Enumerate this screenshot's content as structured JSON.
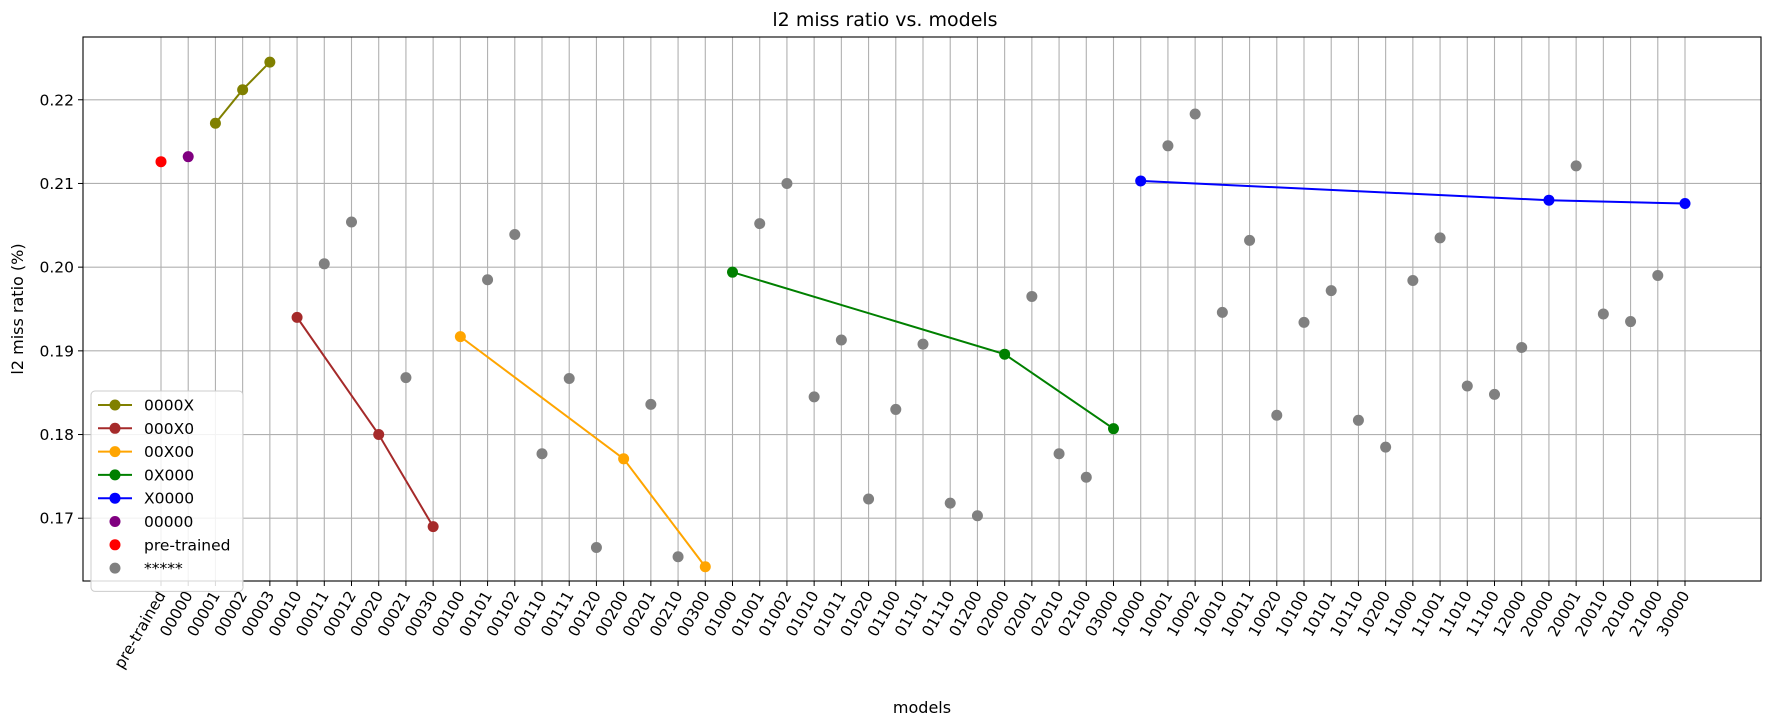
{
  "chart_data": {
    "type": "scatter",
    "title": "l2 miss ratio vs. models",
    "xlabel": "models",
    "ylabel": "l2 miss ratio (%)",
    "ylim": [
      0.1625,
      0.2275
    ],
    "yticks": [
      0.17,
      0.18,
      0.19,
      0.2,
      0.21,
      0.22
    ],
    "grid": true,
    "legend_position": "lower-left",
    "categories": [
      "pre-trained",
      "00000",
      "00001",
      "00002",
      "00003",
      "00010",
      "00011",
      "00012",
      "00020",
      "00021",
      "00030",
      "00100",
      "00101",
      "00102",
      "00110",
      "00111",
      "00120",
      "00200",
      "00201",
      "00210",
      "00300",
      "01000",
      "01001",
      "01002",
      "01010",
      "01011",
      "01020",
      "01100",
      "01101",
      "01110",
      "01200",
      "02000",
      "02001",
      "02010",
      "02100",
      "03000",
      "10000",
      "10001",
      "10002",
      "10010",
      "10011",
      "10020",
      "10100",
      "10101",
      "10110",
      "10200",
      "11000",
      "11001",
      "11010",
      "11100",
      "12000",
      "20000",
      "20001",
      "20010",
      "20100",
      "21000",
      "30000"
    ],
    "series": [
      {
        "name": "0000X",
        "style": "line-marker",
        "color": "#808000",
        "x": [
          "00001",
          "00002",
          "00003"
        ],
        "values": [
          0.2172,
          0.2212,
          0.2245
        ]
      },
      {
        "name": "000X0",
        "style": "line-marker",
        "color": "#a52a2a",
        "x": [
          "00010",
          "00020",
          "00030"
        ],
        "values": [
          0.194,
          0.18,
          0.169
        ]
      },
      {
        "name": "00X00",
        "style": "line-marker",
        "color": "#ffa500",
        "x": [
          "00100",
          "00200",
          "00300"
        ],
        "values": [
          0.1917,
          0.1771,
          0.1642
        ]
      },
      {
        "name": "0X000",
        "style": "line-marker",
        "color": "#008000",
        "x": [
          "01000",
          "02000",
          "03000"
        ],
        "values": [
          0.1994,
          0.1896,
          0.1807
        ]
      },
      {
        "name": "X0000",
        "style": "line-marker",
        "color": "#0000ff",
        "x": [
          "10000",
          "20000",
          "30000"
        ],
        "values": [
          0.2103,
          0.208,
          0.2076
        ]
      },
      {
        "name": "00000",
        "style": "marker",
        "color": "#800080",
        "x": [
          "00000"
        ],
        "values": [
          0.2132
        ]
      },
      {
        "name": "pre-trained",
        "style": "marker",
        "color": "#ff0000",
        "x": [
          "pre-trained"
        ],
        "values": [
          0.2126
        ]
      },
      {
        "name": "*****",
        "style": "marker",
        "color": "#808080",
        "x": [
          "00011",
          "00012",
          "00021",
          "00101",
          "00102",
          "00110",
          "00111",
          "00120",
          "00201",
          "00210",
          "01001",
          "01002",
          "01010",
          "01011",
          "01020",
          "01100",
          "01101",
          "01110",
          "01200",
          "02001",
          "02010",
          "02100",
          "10001",
          "10002",
          "10010",
          "10011",
          "10020",
          "10100",
          "10101",
          "10110",
          "10200",
          "11000",
          "11001",
          "11010",
          "11100",
          "12000",
          "20001",
          "20010",
          "20100",
          "21000"
        ],
        "values": [
          0.2004,
          0.2054,
          0.1868,
          0.1985,
          0.2039,
          0.1777,
          0.1867,
          0.1665,
          0.1836,
          0.1654,
          0.2052,
          0.21,
          0.1845,
          0.1913,
          0.1723,
          0.183,
          0.1908,
          0.1718,
          0.1703,
          0.1965,
          0.1777,
          0.1749,
          0.2145,
          0.2183,
          0.1946,
          0.2032,
          0.1823,
          0.1934,
          0.1972,
          0.1817,
          0.1785,
          0.1984,
          0.2035,
          0.1858,
          0.1848,
          0.1904,
          0.2121,
          0.1944,
          0.1935,
          0.199
        ]
      }
    ]
  }
}
